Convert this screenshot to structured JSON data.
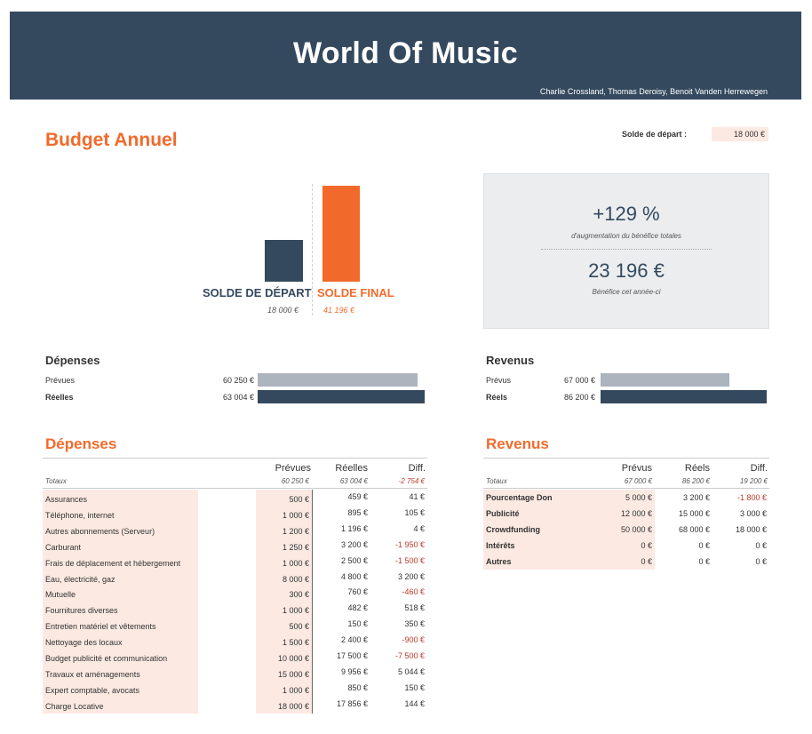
{
  "header": {
    "title": "World Of Music",
    "authors": "Charlie Crossland, Thomas Deroisy, Benoit Vanden Herrewegen"
  },
  "budget": {
    "title": "Budget Annuel",
    "solde_depart_label": "Solde de départ :",
    "solde_depart_value": "18 000 €"
  },
  "chart": {
    "start_label": "SOLDE DE DÉPART",
    "start_value": "18 000 €",
    "start_amount": 18000,
    "final_label": "SOLDE FINAL",
    "final_value": "41 196 €",
    "final_amount": 41196
  },
  "kpi": {
    "pct": "+129 %",
    "pct_label": "d'augmentation du bénéfice totales",
    "benefice": "23 196 €",
    "benefice_label": "Bénéfice cet année-ci"
  },
  "summary_depenses": {
    "title": "Dépenses",
    "rows": [
      {
        "label": "Prévues",
        "value": "60 250 €",
        "amount": 60250
      },
      {
        "label": "Réelles",
        "value": "63 004 €",
        "amount": 63004
      }
    ]
  },
  "summary_revenus": {
    "title": "Revenus",
    "rows": [
      {
        "label": "Prévus",
        "value": "67 000 €",
        "amount": 67000
      },
      {
        "label": "Réels",
        "value": "86 200 €",
        "amount": 86200
      }
    ]
  },
  "depenses": {
    "title": "Dépenses",
    "headers": {
      "prevues": "Prévues",
      "reelles": "Réelles",
      "diff": "Diff."
    },
    "totals": {
      "label": "Totaux",
      "prevues": "60 250 €",
      "reelles": "63 004 €",
      "diff": "-2 754 €"
    },
    "rows": [
      {
        "label": "Assurances",
        "prevues": "500 €",
        "reelles": "459 €",
        "diff": "41 €"
      },
      {
        "label": "Téléphone, internet",
        "prevues": "1 000 €",
        "reelles": "895 €",
        "diff": "105 €"
      },
      {
        "label": "Autres abonnements (Serveur)",
        "prevues": "1 200 €",
        "reelles": "1 196 €",
        "diff": "4 €"
      },
      {
        "label": "Carburant",
        "prevues": "1 250 €",
        "reelles": "3 200 €",
        "diff": "-1 950 €"
      },
      {
        "label": "Frais de déplacement et hébergement",
        "prevues": "1 000 €",
        "reelles": "2 500 €",
        "diff": "-1 500 €"
      },
      {
        "label": "Eau, électricité, gaz",
        "prevues": "8 000 €",
        "reelles": "4 800 €",
        "diff": "3 200 €"
      },
      {
        "label": "Mutuelle",
        "prevues": "300 €",
        "reelles": "760 €",
        "diff": "-460 €"
      },
      {
        "label": "Fournitures diverses",
        "prevues": "1 000 €",
        "reelles": "482 €",
        "diff": "518 €"
      },
      {
        "label": "Entretien matériel et vêtements",
        "prevues": "500 €",
        "reelles": "150 €",
        "diff": "350 €"
      },
      {
        "label": "Nettoyage des locaux",
        "prevues": "1 500 €",
        "reelles": "2 400 €",
        "diff": "-900 €"
      },
      {
        "label": "Budget publicité et communication",
        "prevues": "10 000 €",
        "reelles": "17 500 €",
        "diff": "-7 500 €"
      },
      {
        "label": "Travaux et aménagements",
        "prevues": "15 000 €",
        "reelles": "9 956 €",
        "diff": "5 044 €"
      },
      {
        "label": "Expert comptable, avocats",
        "prevues": "1 000 €",
        "reelles": "850 €",
        "diff": "150 €"
      },
      {
        "label": "Charge Locative",
        "prevues": "18 000 €",
        "reelles": "17 856 €",
        "diff": "144 €"
      }
    ]
  },
  "revenus": {
    "title": "Revenus",
    "headers": {
      "prevus": "Prévus",
      "reels": "Réels",
      "diff": "Diff."
    },
    "totals": {
      "label": "Totaux",
      "prevus": "67 000 €",
      "reels": "86 200 €",
      "diff": "19 200 €"
    },
    "rows": [
      {
        "label": "Pourcentage Don",
        "prevus": "5 000 €",
        "reels": "3 200 €",
        "diff": "-1 800 €"
      },
      {
        "label": "Publicité",
        "prevus": "12 000 €",
        "reels": "15 000 €",
        "diff": "3 000 €"
      },
      {
        "label": "Crowdfunding",
        "prevus": "50 000 €",
        "reels": "68 000 €",
        "diff": "18 000 €"
      },
      {
        "label": "Intérêts",
        "prevus": "0 €",
        "reels": "0 €",
        "diff": "0 €"
      },
      {
        "label": "Autres",
        "prevus": "0 €",
        "reels": "0 €",
        "diff": "0 €"
      }
    ]
  },
  "colors": {
    "header_bg": "#34495e",
    "accent_orange": "#f26a2b",
    "negative": "#c0392b",
    "input_bg": "#fbe9e2"
  }
}
